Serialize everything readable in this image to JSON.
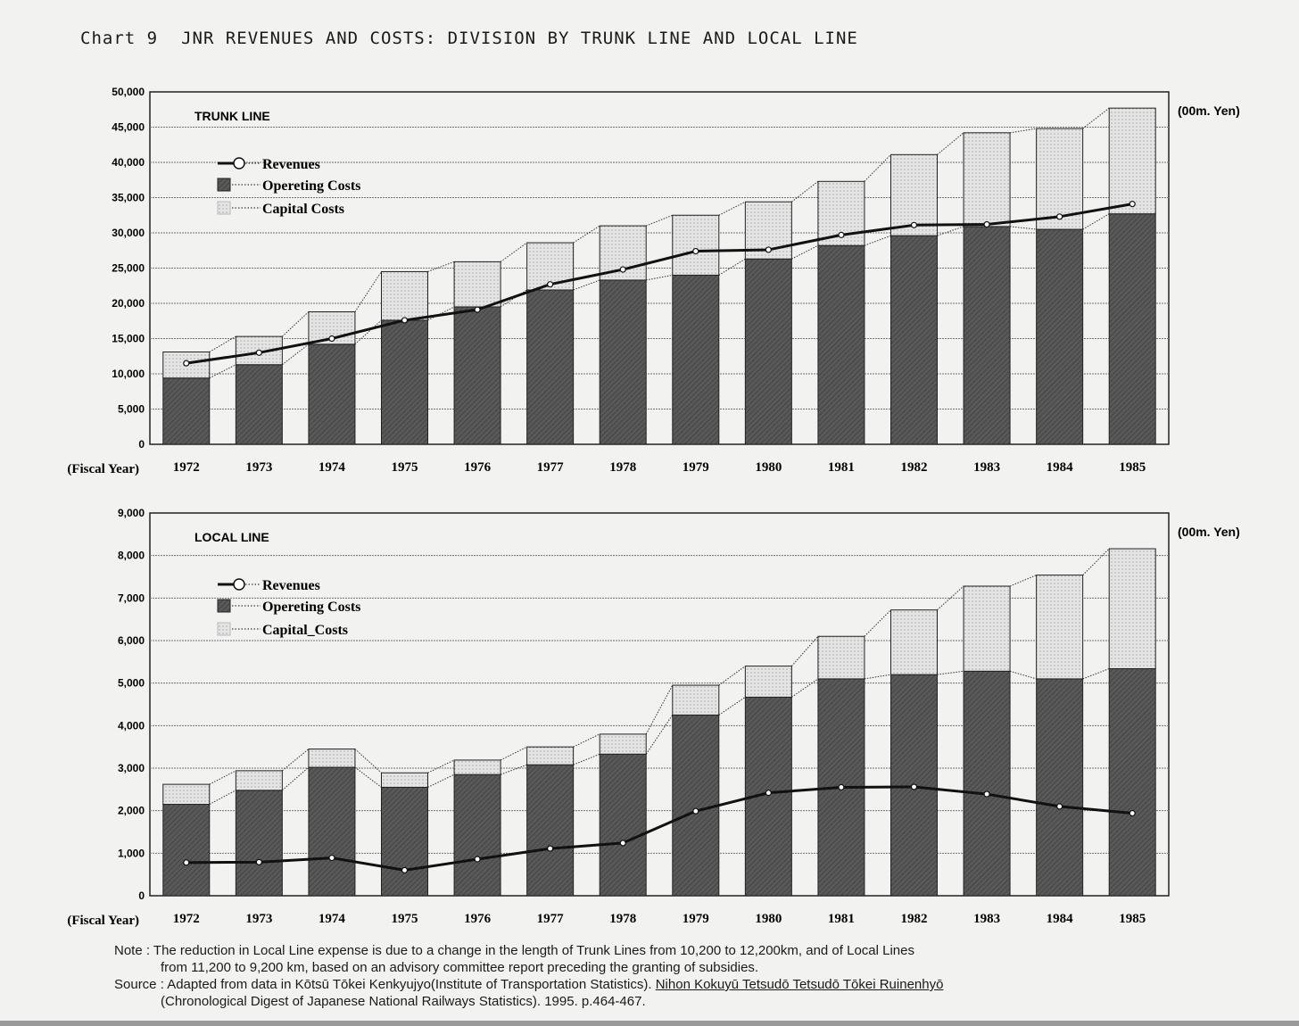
{
  "header": {
    "chart_number": "Chart 9",
    "title": "JNR REVENUES AND COSTS: DIVISION BY TRUNK LINE AND LOCAL LINE"
  },
  "colors": {
    "operating_costs": "#595959",
    "capital_costs": "#e4e4e4",
    "revenues_line": "#111111",
    "grid": "#777777"
  },
  "chart_data": [
    {
      "type": "bar",
      "stacked": true,
      "panel_label": "TRUNK LINE",
      "unit_label": "(00m. Yen)",
      "xlabel": "(Fiscal Year)",
      "categories": [
        "1972",
        "1973",
        "1974",
        "1975",
        "1976",
        "1977",
        "1978",
        "1979",
        "1980",
        "1981",
        "1982",
        "1983",
        "1984",
        "1985"
      ],
      "ylim": [
        0,
        50000
      ],
      "yticks": [
        "0",
        "5,000",
        "10,000",
        "15,000",
        "20,000",
        "25,000",
        "30,000",
        "35,000",
        "40,000",
        "45,000",
        "50,000"
      ],
      "grid": true,
      "legend_position": "top-left",
      "legend": [
        "Revenues",
        "Opereting Costs",
        "Capital Costs"
      ],
      "series": [
        {
          "name": "Opereting Costs",
          "kind": "bar",
          "values": [
            9400,
            11300,
            14200,
            17600,
            19500,
            21900,
            23300,
            24000,
            26300,
            28200,
            29600,
            30900,
            30500,
            32700
          ]
        },
        {
          "name": "Capital Costs",
          "kind": "bar",
          "values": [
            3700,
            4000,
            4600,
            6900,
            6400,
            6700,
            7700,
            8500,
            8100,
            9100,
            11500,
            13300,
            14300,
            15000
          ]
        },
        {
          "name": "Revenues",
          "kind": "line",
          "values": [
            11500,
            13000,
            15000,
            17600,
            19100,
            22700,
            24800,
            27400,
            27600,
            29700,
            31100,
            31200,
            32300,
            34100
          ]
        }
      ]
    },
    {
      "type": "bar",
      "stacked": true,
      "panel_label": "LOCAL LINE",
      "unit_label": "(00m. Yen)",
      "xlabel": "(Fiscal Year)",
      "categories": [
        "1972",
        "1973",
        "1974",
        "1975",
        "1976",
        "1977",
        "1978",
        "1979",
        "1980",
        "1981",
        "1982",
        "1983",
        "1984",
        "1985"
      ],
      "ylim": [
        0,
        9000
      ],
      "yticks": [
        "0",
        "1,000",
        "2,000",
        "3,000",
        "4,000",
        "5,000",
        "6,000",
        "7,000",
        "8,000",
        "9,000"
      ],
      "grid": true,
      "legend_position": "top-left",
      "legend": [
        "Revenues",
        "Opereting Costs",
        "Capital_Costs"
      ],
      "series": [
        {
          "name": "Opereting Costs",
          "kind": "bar",
          "values": [
            2150,
            2480,
            3020,
            2550,
            2850,
            3080,
            3330,
            4250,
            4670,
            5100,
            5200,
            5280,
            5100,
            5340
          ]
        },
        {
          "name": "Capital Costs",
          "kind": "bar",
          "values": [
            470,
            460,
            430,
            340,
            340,
            420,
            470,
            700,
            730,
            1000,
            1520,
            2000,
            2440,
            2820
          ]
        },
        {
          "name": "Revenues",
          "kind": "line",
          "values": [
            780,
            790,
            890,
            600,
            860,
            1110,
            1240,
            1990,
            2420,
            2550,
            2560,
            2390,
            2100,
            1940
          ]
        }
      ]
    }
  ],
  "notes": {
    "note_line1": "Note : The reduction in Local Line expense is due to a change in the length of Trunk Lines from 10,200 to 12,200km, and of Local Lines",
    "note_line2": "from 11,200 to 9,200 km, based on an advisory committee report preceding the granting of subsidies.",
    "source_prefix": "Source : Adapted from data in Kōtsū Tōkei Kenkyujyo(Institute of Transportation Statistics).",
    "source_title": "Nihon Kokuyū Tetsudō Tetsudō Tōkei Ruinenhyō",
    "source_line2": "(Chronological Digest of Japanese National Railways Statistics). 1995. p.464-467."
  }
}
